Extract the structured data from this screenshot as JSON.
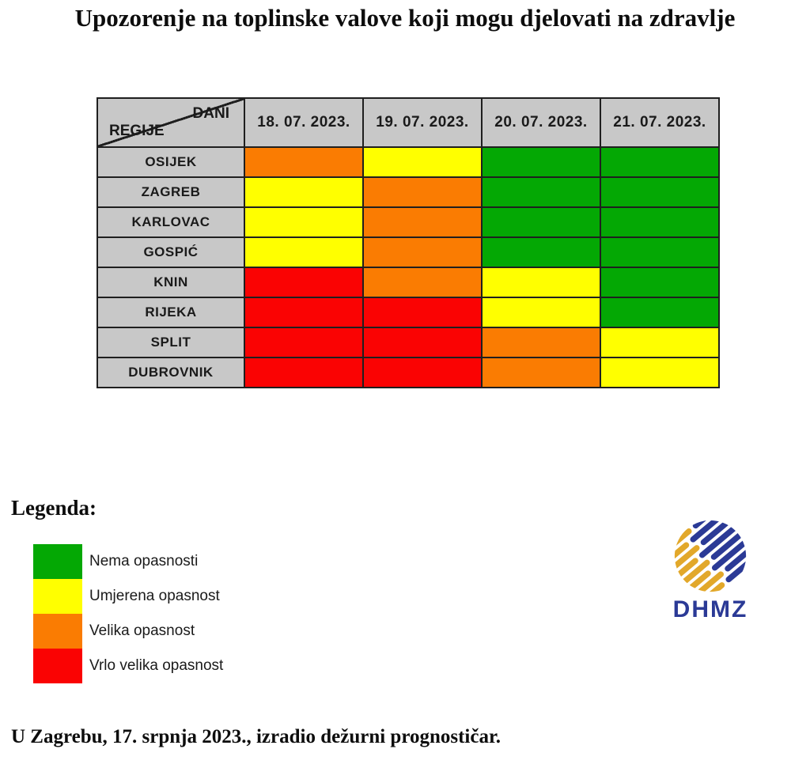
{
  "chart_data": {
    "type": "heatmap",
    "title": "Upozorenje na toplinske valove koji mogu djelovati na zdravlje",
    "corner": {
      "top": "DANI",
      "bottom": "REGIJE"
    },
    "x": [
      "18. 07. 2023.",
      "19. 07. 2023.",
      "20. 07. 2023.",
      "21. 07. 2023."
    ],
    "y": [
      "OSIJEK",
      "ZAGREB",
      "KARLOVAC",
      "GOSPIĆ",
      "KNIN",
      "RIJEKA",
      "SPLIT",
      "DUBROVNIK"
    ],
    "levels": [
      {
        "id": "nema",
        "label": "Nema opasnosti",
        "color": "#04a804"
      },
      {
        "id": "umjerena",
        "label": "Umjerena opasnost",
        "color": "#ffff00"
      },
      {
        "id": "velika",
        "label": "Velika opasnost",
        "color": "#fa7c02"
      },
      {
        "id": "vrlo-velika",
        "label": "Vrlo velika opasnost",
        "color": "#fa0303"
      }
    ],
    "values": [
      [
        2,
        1,
        0,
        0
      ],
      [
        1,
        2,
        0,
        0
      ],
      [
        1,
        2,
        0,
        0
      ],
      [
        1,
        2,
        0,
        0
      ],
      [
        3,
        2,
        1,
        0
      ],
      [
        3,
        3,
        1,
        0
      ],
      [
        3,
        3,
        2,
        1
      ],
      [
        3,
        3,
        2,
        1
      ]
    ],
    "legend_position": "bottom-left",
    "grid": true
  },
  "legend": {
    "heading": "Legenda:"
  },
  "logo": {
    "text": "DHMZ"
  },
  "footer": "U Zagrebu, 17. srpnja 2023., izradio dežurni prognostičar.",
  "colors": {
    "header_bg": "#c8c8c8",
    "border": "#1f1f1f",
    "logo_blue": "#2b3a96",
    "logo_gold": "#e2a82a"
  }
}
